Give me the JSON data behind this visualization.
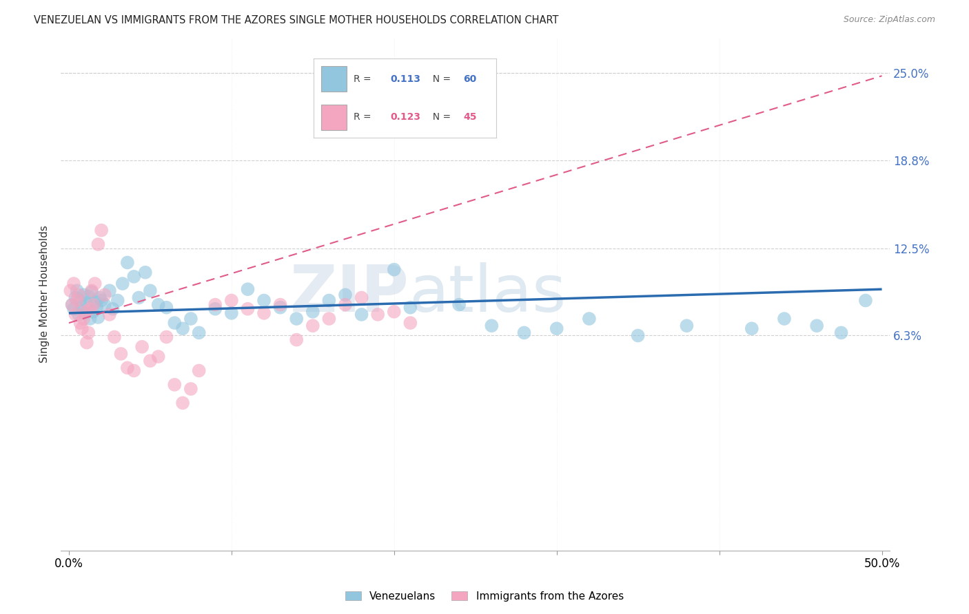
{
  "title": "VENEZUELAN VS IMMIGRANTS FROM THE AZORES SINGLE MOTHER HOUSEHOLDS CORRELATION CHART",
  "source": "Source: ZipAtlas.com",
  "ylabel": "Single Mother Households",
  "ytick_labels": [
    "25.0%",
    "18.8%",
    "12.5%",
    "6.3%"
  ],
  "ytick_values": [
    0.25,
    0.188,
    0.125,
    0.063
  ],
  "xlim": [
    -0.005,
    0.505
  ],
  "ylim": [
    -0.09,
    0.275
  ],
  "legend_blue_r": "0.113",
  "legend_blue_n": "60",
  "legend_pink_r": "0.123",
  "legend_pink_n": "45",
  "legend_blue_label": "Venezuelans",
  "legend_pink_label": "Immigrants from the Azores",
  "blue_color": "#92c5de",
  "pink_color": "#f4a6c0",
  "blue_line_color": "#2b6cb0",
  "pink_line_color": "#e05a8a",
  "watermark_zip": "ZIP",
  "watermark_atlas": "atlas",
  "grid_color": "#d0d0d0",
  "background_color": "#ffffff",
  "blue_line_start_y": 0.079,
  "blue_line_end_y": 0.096,
  "pink_line_start_y": 0.072,
  "pink_line_end_y": 0.248,
  "blue_x": [
    0.002,
    0.003,
    0.004,
    0.005,
    0.006,
    0.007,
    0.008,
    0.009,
    0.01,
    0.011,
    0.012,
    0.013,
    0.014,
    0.015,
    0.016,
    0.017,
    0.018,
    0.019,
    0.02,
    0.022,
    0.025,
    0.027,
    0.03,
    0.033,
    0.036,
    0.04,
    0.043,
    0.047,
    0.05,
    0.055,
    0.06,
    0.065,
    0.07,
    0.075,
    0.08,
    0.09,
    0.1,
    0.11,
    0.12,
    0.13,
    0.14,
    0.15,
    0.16,
    0.17,
    0.18,
    0.2,
    0.21,
    0.22,
    0.24,
    0.26,
    0.28,
    0.3,
    0.32,
    0.35,
    0.38,
    0.42,
    0.44,
    0.46,
    0.475,
    0.49
  ],
  "blue_y": [
    0.085,
    0.082,
    0.09,
    0.095,
    0.078,
    0.088,
    0.083,
    0.092,
    0.079,
    0.086,
    0.091,
    0.075,
    0.094,
    0.08,
    0.087,
    0.083,
    0.076,
    0.09,
    0.088,
    0.085,
    0.095,
    0.082,
    0.088,
    0.1,
    0.115,
    0.105,
    0.09,
    0.108,
    0.095,
    0.085,
    0.083,
    0.072,
    0.068,
    0.075,
    0.065,
    0.082,
    0.079,
    0.096,
    0.088,
    0.083,
    0.075,
    0.08,
    0.088,
    0.092,
    0.078,
    0.11,
    0.083,
    0.21,
    0.085,
    0.07,
    0.065,
    0.068,
    0.075,
    0.063,
    0.07,
    0.068,
    0.075,
    0.07,
    0.065,
    0.088
  ],
  "pink_x": [
    0.001,
    0.002,
    0.003,
    0.004,
    0.005,
    0.006,
    0.007,
    0.008,
    0.009,
    0.01,
    0.011,
    0.012,
    0.013,
    0.014,
    0.015,
    0.016,
    0.018,
    0.02,
    0.022,
    0.025,
    0.028,
    0.032,
    0.036,
    0.04,
    0.045,
    0.05,
    0.055,
    0.06,
    0.065,
    0.07,
    0.075,
    0.08,
    0.09,
    0.1,
    0.11,
    0.12,
    0.13,
    0.14,
    0.15,
    0.16,
    0.17,
    0.18,
    0.19,
    0.2,
    0.21
  ],
  "pink_y": [
    0.095,
    0.085,
    0.1,
    0.078,
    0.088,
    0.092,
    0.072,
    0.068,
    0.075,
    0.08,
    0.058,
    0.065,
    0.082,
    0.095,
    0.085,
    0.1,
    0.128,
    0.138,
    0.092,
    0.078,
    0.062,
    0.05,
    0.04,
    0.038,
    0.055,
    0.045,
    0.048,
    0.062,
    0.028,
    0.015,
    0.025,
    0.038,
    0.085,
    0.088,
    0.082,
    0.079,
    0.085,
    0.06,
    0.07,
    0.075,
    0.085,
    0.09,
    0.078,
    0.08,
    0.072
  ]
}
